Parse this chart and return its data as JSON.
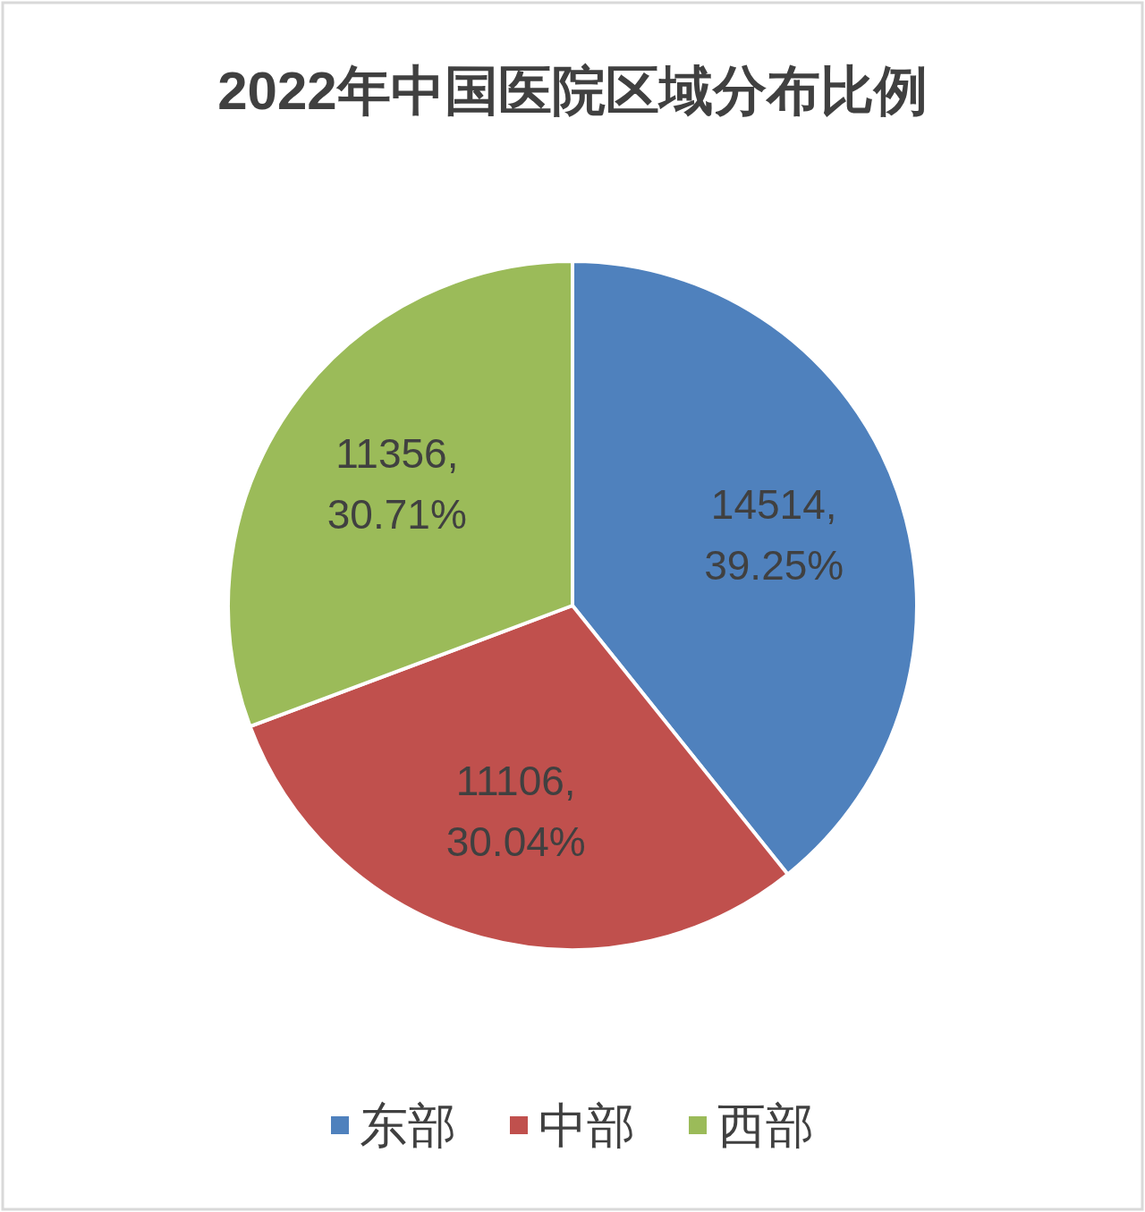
{
  "chart_data": {
    "type": "pie",
    "title": "2022年中国医院区域分布比例",
    "categories": [
      "东部",
      "中部",
      "西部"
    ],
    "values": [
      14514,
      11106,
      11356
    ],
    "colors": [
      "#4f81bd",
      "#c0504d",
      "#9bbb59"
    ],
    "value_labels": [
      "14514, 39.25%",
      "11106, 30.04%",
      "11356, 30.71%"
    ],
    "legend": "bottom"
  }
}
